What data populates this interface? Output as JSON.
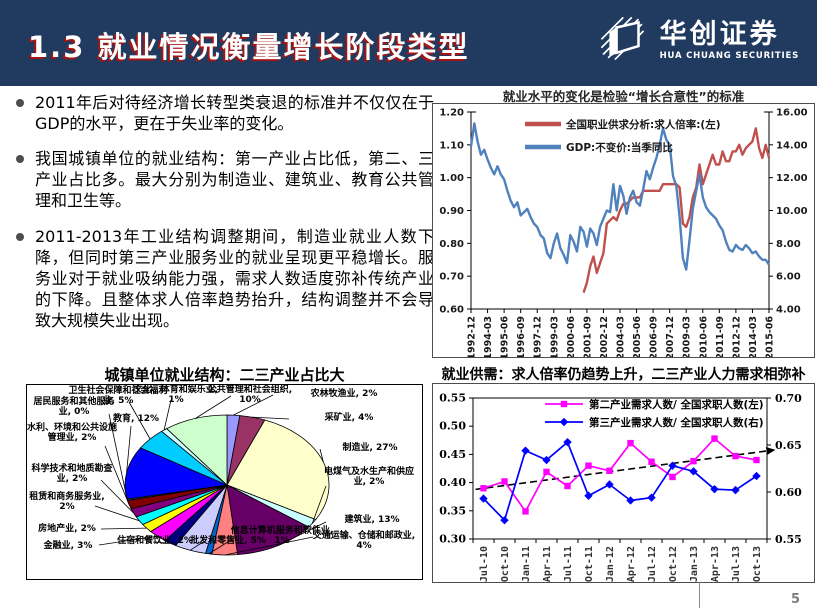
{
  "header": {
    "title": "1.3 就业情况衡量增长阶段类型",
    "logo_cn": "华创证券",
    "logo_en": "HUA CHUANG SECURITIES"
  },
  "bullets": [
    "2011年后对待经济增长转型类衰退的标准并不仅仅在于GDP的水平，更在于失业率的变化。",
    "我国城镇单位的就业结构：第一产业占比低，第二、三产业占比多。最大分别为制造业、建筑业、教育公共管理和卫生等。",
    "2011-2013年工业结构调整期间，制造业就业人数下降，但同时第三产业服务业的就业呈现更平稳增长。服务业对于就业吸纳能力强，需求人数适度弥补传统产业的下降。且整体求人倍率趋势抬升，结构调整并不会导致大规模失业出现。"
  ],
  "footer": {
    "page_number": "5"
  },
  "chart_data": [
    {
      "type": "line",
      "title": "就业水平的变化是检验“增长合意性”的标准",
      "x_points": 91,
      "x_tick_labels": [
        "1992-12",
        "1994-03",
        "1995-06",
        "1996-09",
        "1997-12",
        "1999-03",
        "2000-06",
        "2001-09",
        "2002-12",
        "2004-03",
        "2005-06",
        "2006-09",
        "2007-12",
        "2009-03",
        "2010-06",
        "2011-09",
        "2012-12",
        "2014-03",
        "2015-06"
      ],
      "left_axis": {
        "min": 0.6,
        "max": 1.2,
        "ticks": [
          "1.20",
          "1.10",
          "1.00",
          "0.90",
          "0.80",
          "0.70",
          "0.60"
        ]
      },
      "right_axis": {
        "min": 4.0,
        "max": 16.0,
        "ticks": [
          "16.00",
          "14.00",
          "12.00",
          "10.00",
          "8.00",
          "6.00",
          "4.00"
        ]
      },
      "grid": false,
      "legend_position": "top-inside",
      "series": [
        {
          "name": "全国职业供求分析:求人倍率:(左)",
          "color": "#C0504D",
          "axis": "left",
          "start_index": 34,
          "values": [
            0.65,
            0.68,
            0.73,
            0.76,
            0.71,
            0.74,
            0.77,
            0.86,
            0.87,
            0.88,
            0.87,
            0.9,
            0.92,
            0.92,
            0.93,
            0.94,
            0.94,
            0.94,
            0.96,
            0.96,
            0.96,
            0.96,
            0.96,
            0.96,
            0.98,
            0.98,
            0.98,
            0.98,
            0.98,
            0.97,
            0.86,
            0.85,
            0.88,
            0.94,
            0.97,
            1.04,
            0.98,
            1.01,
            1.04,
            1.07,
            1.04,
            1.04,
            1.08,
            1.05,
            1.05,
            1.08,
            1.08,
            1.1,
            1.07,
            1.09,
            1.1,
            1.11,
            1.15,
            1.09,
            1.06,
            1.1,
            1.06
          ]
        },
        {
          "name": "GDP:不变价:当季同比",
          "color": "#4F81BD",
          "axis": "right",
          "start_index": 0,
          "values": [
            13.9,
            15.3,
            14.2,
            13.4,
            13.7,
            13.1,
            12.6,
            12.2,
            12.7,
            12.2,
            11.9,
            11.2,
            10.6,
            10.2,
            10.5,
            9.7,
            9.9,
            10.1,
            9.6,
            9.2,
            9.0,
            8.5,
            8.3,
            7.4,
            7.1,
            8.0,
            8.6,
            7.7,
            7.3,
            6.8,
            8.5,
            8.1,
            7.5,
            9.0,
            8.7,
            7.8,
            8.9,
            8.6,
            7.9,
            9.0,
            9.5,
            10.0,
            9.9,
            11.6,
            10.0,
            11.5,
            10.9,
            9.8,
            10.8,
            11.2,
            10.5,
            10.3,
            11.3,
            12.4,
            11.9,
            12.6,
            13.2,
            14.0,
            15.0,
            14.3,
            14.0,
            12.1,
            11.5,
            9.6,
            7.1,
            6.4,
            8.2,
            10.1,
            11.2,
            12.2,
            10.8,
            10.2,
            9.9,
            9.7,
            9.5,
            9.1,
            8.8,
            8.1,
            7.6,
            7.5,
            7.9,
            7.7,
            7.6,
            7.9,
            7.7,
            7.4,
            7.5,
            7.2,
            7.0,
            7.0,
            6.7
          ]
        }
      ]
    },
    {
      "type": "pie",
      "title": "城镇单位就业结构：二三产业占比大",
      "slices": [
        {
          "label": "农林牧渔业",
          "pct": 2,
          "color": "#9999FF"
        },
        {
          "label": "采矿业",
          "pct": 4,
          "color": "#993366"
        },
        {
          "label": "制造业",
          "pct": 27,
          "color": "#FFFFCC"
        },
        {
          "label": "电煤气及水生产和供应业",
          "pct": 2,
          "color": "#CCFFFF"
        },
        {
          "label": "建筑业",
          "pct": 13,
          "color": "#660066"
        },
        {
          "label": "交通运输、仓储和邮政业",
          "pct": 4,
          "color": "#FF8080"
        },
        {
          "label": "信息计算机服务和软件业",
          "pct": 1,
          "color": "#0066CC"
        },
        {
          "label": "批发和零售业",
          "pct": 5,
          "color": "#CCCCFF"
        },
        {
          "label": "住宿和餐饮业",
          "pct": 2,
          "color": "#000080"
        },
        {
          "label": "金融业",
          "pct": 3,
          "color": "#FF00FF"
        },
        {
          "label": "房地产业",
          "pct": 2,
          "color": "#FFFF00"
        },
        {
          "label": "租赁和商务服务业",
          "pct": 2,
          "color": "#00FFFF"
        },
        {
          "label": "科学技术和地质勘查业",
          "pct": 2,
          "color": "#800080"
        },
        {
          "label": "水利、环境和公共设施管理业",
          "pct": 2,
          "color": "#800000"
        },
        {
          "label": "居民服务和其他服务业",
          "pct": 0,
          "color": "#008080"
        },
        {
          "label": "教育",
          "pct": 12,
          "color": "#0000FF"
        },
        {
          "label": "卫生社会保障和社会福利业",
          "pct": 5,
          "color": "#00CCFF"
        },
        {
          "label": "文化、体育和娱乐业",
          "pct": 1,
          "color": "#CCFFFF"
        },
        {
          "label": "公共管理和社会组织",
          "pct": 10,
          "color": "#CCFFCC"
        }
      ]
    },
    {
      "type": "line",
      "title": "就业供需：求人倍率仍趋势上升，二三产业人力需求相弥补",
      "categories": [
        "Jul-10",
        "Oct-10",
        "Jan-11",
        "Apr-11",
        "Jul-11",
        "Oct-11",
        "Jan-12",
        "Apr-12",
        "Jul-12",
        "Oct-12",
        "Jan-13",
        "Apr-13",
        "Jul-13",
        "Oct-13"
      ],
      "left_axis": {
        "min": 0.3,
        "max": 0.55,
        "ticks": [
          "0.55",
          "0.50",
          "0.45",
          "0.40",
          "0.35",
          "0.30"
        ]
      },
      "right_axis": {
        "min": 0.55,
        "max": 0.7,
        "ticks": [
          "0.70",
          "0.65",
          "0.60",
          "0.55"
        ]
      },
      "grid": false,
      "legend_position": "top-inside",
      "series": [
        {
          "name": "第二产业需求人数/ 全国求职人数(左)",
          "color": "#FF00FF",
          "axis": "left",
          "marker": "square",
          "values": [
            0.39,
            0.402,
            0.349,
            0.419,
            0.394,
            0.43,
            0.421,
            0.47,
            0.437,
            0.41,
            0.438,
            0.478,
            0.447,
            0.44
          ]
        },
        {
          "name": "第三产业需求人数/ 全国求职人数(右)",
          "color": "#0000FF",
          "axis": "right",
          "marker": "diamond",
          "values": [
            0.593,
            0.57,
            0.644,
            0.634,
            0.653,
            0.596,
            0.608,
            0.591,
            0.594,
            0.628,
            0.622,
            0.603,
            0.602,
            0.617
          ]
        }
      ],
      "trend": {
        "axis": "left",
        "values": [
          0.388,
          0.456
        ],
        "color": "#000000",
        "style": "dashed",
        "arrow": true
      }
    }
  ]
}
